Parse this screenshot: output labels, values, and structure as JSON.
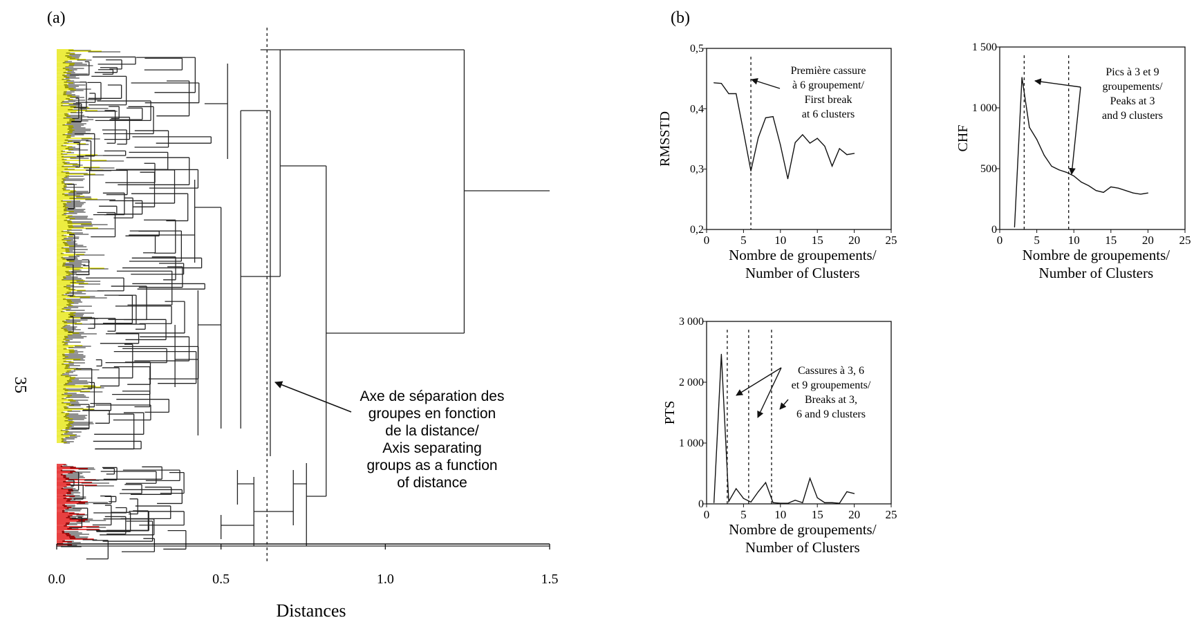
{
  "panel_labels": {
    "a": "(a)",
    "b": "(b)"
  },
  "page_number": "35",
  "dendrogram": {
    "xlabel": "Distances",
    "x_ticks": [
      "0.0",
      "0.5",
      "1.0",
      "1.5"
    ],
    "x_tick_values": [
      0.0,
      0.5,
      1.0,
      1.5
    ],
    "xlim": [
      0,
      1.5
    ],
    "cut_distance": 0.64,
    "cluster_colors": {
      "group_1": "#e6e600",
      "group_2": "#e00000"
    },
    "annotation_lines": [
      "Axe de séparation des",
      "groupes en fonction",
      "de la distance/",
      "Axis separating",
      "groups as a function",
      "of distance"
    ]
  },
  "chart_data": [
    {
      "type": "line",
      "ylabel": "RMSSTD",
      "xlabel_lines": [
        "Nombre de groupements/",
        "Number of Clusters"
      ],
      "xlim": [
        0,
        25
      ],
      "ylim": [
        0.2,
        0.5
      ],
      "x_ticks": [
        "0",
        "5",
        "10",
        "15",
        "20",
        "25"
      ],
      "x_tick_values": [
        0,
        5,
        10,
        15,
        20,
        25
      ],
      "y_ticks": [
        "0,2",
        "0,3",
        "0,4",
        "0,5"
      ],
      "y_tick_values": [
        0.2,
        0.3,
        0.4,
        0.5
      ],
      "vlines": [
        6
      ],
      "x": [
        1,
        2,
        3,
        4,
        5,
        6,
        7,
        8,
        9,
        10,
        11,
        12,
        13,
        14,
        15,
        16,
        17,
        18,
        19,
        20
      ],
      "values": [
        0.443,
        0.442,
        0.425,
        0.425,
        0.362,
        0.297,
        0.352,
        0.385,
        0.387,
        0.34,
        0.284,
        0.344,
        0.357,
        0.343,
        0.351,
        0.338,
        0.305,
        0.334,
        0.324,
        0.326
      ],
      "annotation_lines": [
        "Première cassure",
        "à 6 groupement/",
        "First break",
        "at 6 clusters"
      ]
    },
    {
      "type": "line",
      "ylabel": "CHF",
      "xlabel_lines": [
        "Nombre de groupements/",
        "Number of Clusters"
      ],
      "xlim": [
        0,
        25
      ],
      "ylim": [
        0,
        1500
      ],
      "x_ticks": [
        "0",
        "5",
        "10",
        "15",
        "20",
        "25"
      ],
      "x_tick_values": [
        0,
        5,
        10,
        15,
        20,
        25
      ],
      "y_ticks": [
        "0",
        "500",
        "1 000",
        "1 500"
      ],
      "y_tick_values": [
        0,
        500,
        1000,
        1500
      ],
      "vlines": [
        3.3,
        9.3
      ],
      "x": [
        2,
        3,
        4,
        5,
        6,
        7,
        8,
        9,
        10,
        11,
        12,
        13,
        14,
        15,
        16,
        17,
        18,
        19,
        20
      ],
      "values": [
        20,
        1250,
        840,
        740,
        610,
        520,
        490,
        470,
        440,
        390,
        360,
        320,
        305,
        350,
        340,
        320,
        300,
        290,
        300
      ],
      "annotation_lines": [
        "Pics à 3 et 9",
        "groupements/",
        "Peaks at 3",
        "and 9 clusters"
      ]
    },
    {
      "type": "line",
      "ylabel": "PTS",
      "xlabel_lines": [
        "Nombre de groupements/",
        "Number of Clusters"
      ],
      "xlim": [
        0,
        25
      ],
      "ylim": [
        0,
        3000
      ],
      "x_ticks": [
        "0",
        "5",
        "10",
        "15",
        "20",
        "25"
      ],
      "x_tick_values": [
        0,
        5,
        10,
        15,
        20,
        25
      ],
      "y_ticks": [
        "0",
        "1 000",
        "2 000",
        "3 000"
      ],
      "y_tick_values": [
        0,
        1000,
        2000,
        3000
      ],
      "vlines": [
        2.8,
        5.7,
        8.8
      ],
      "x": [
        1,
        2,
        3,
        4,
        5,
        6,
        7,
        8,
        9,
        10,
        11,
        12,
        13,
        14,
        15,
        16,
        17,
        18,
        19,
        20
      ],
      "values": [
        20,
        2460,
        40,
        250,
        90,
        30,
        200,
        350,
        20,
        10,
        10,
        60,
        20,
        420,
        100,
        20,
        20,
        10,
        200,
        170
      ],
      "annotation_lines": [
        "Cassures à 3, 6",
        "et 9 groupements/",
        "Breaks at 3,",
        "6 and 9  clusters"
      ]
    }
  ]
}
